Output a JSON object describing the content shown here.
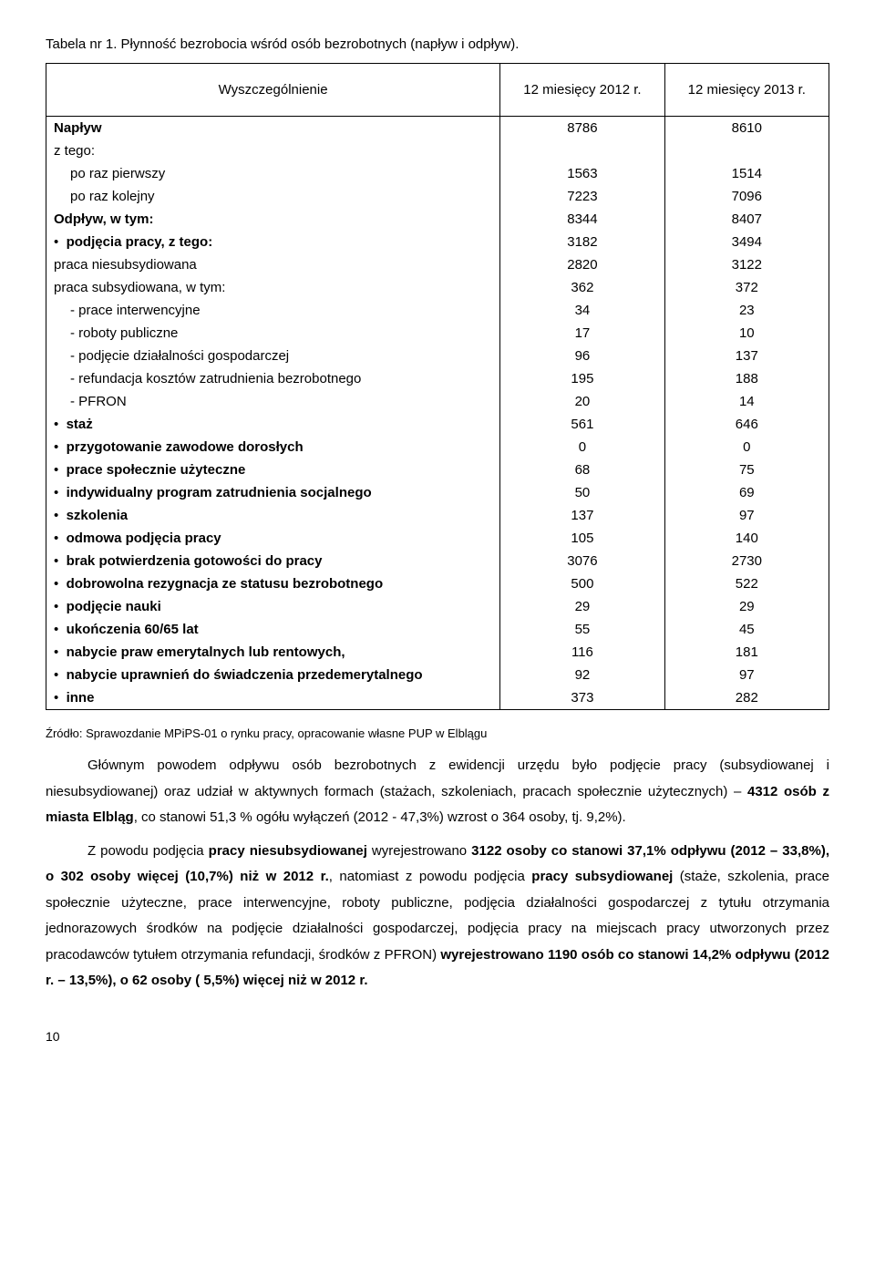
{
  "tableTitle": "Tabela nr 1. Płynność bezrobocia wśród osób bezrobotnych (napływ i odpływ).",
  "header": {
    "c1": "Wyszczególnienie",
    "c2": "12 miesięcy 2012 r.",
    "c3": "12 miesięcy 2013 r."
  },
  "rows": [
    {
      "label": "Napływ",
      "v1": "8786",
      "v2": "8610",
      "b": true
    },
    {
      "label": "z tego:",
      "v1": "",
      "v2": ""
    },
    {
      "label": "po raz pierwszy",
      "v1": "1563",
      "v2": "1514",
      "indent": 1
    },
    {
      "label": "po raz kolejny",
      "v1": "7223",
      "v2": "7096",
      "indent": 1
    },
    {
      "label": "Odpływ, w tym:",
      "v1": "8344",
      "v2": "8407",
      "b": true
    },
    {
      "label": "podjęcia pracy, z tego:",
      "v1": "3182",
      "v2": "3494",
      "bullet": true,
      "b": true
    },
    {
      "label": "praca niesubsydiowana",
      "v1": "2820",
      "v2": "3122"
    },
    {
      "label": "praca subsydiowana, w tym:",
      "v1": "362",
      "v2": "372"
    },
    {
      "label": "- prace interwencyjne",
      "v1": "34",
      "v2": "23",
      "indent": 1
    },
    {
      "label": "- roboty publiczne",
      "v1": "17",
      "v2": "10",
      "indent": 1
    },
    {
      "label": "- podjęcie działalności gospodarczej",
      "v1": "96",
      "v2": "137",
      "indent": 1
    },
    {
      "label": "- refundacja kosztów zatrudnienia bezrobotnego",
      "v1": "195",
      "v2": "188",
      "indent": 1
    },
    {
      "label": "- PFRON",
      "v1": "20",
      "v2": "14",
      "indent": 1
    },
    {
      "label": "staż",
      "v1": "561",
      "v2": "646",
      "bullet": true,
      "b": true
    },
    {
      "label": "przygotowanie zawodowe dorosłych",
      "v1": "0",
      "v2": "0",
      "bullet": true,
      "b": true
    },
    {
      "label": "prace społecznie użyteczne",
      "v1": "68",
      "v2": "75",
      "bullet": true,
      "b": true
    },
    {
      "label": "indywidualny program zatrudnienia socjalnego",
      "v1": "50",
      "v2": "69",
      "bullet": true,
      "b": true
    },
    {
      "label": "szkolenia",
      "v1": "137",
      "v2": "97",
      "bullet": true,
      "b": true
    },
    {
      "label": "odmowa podjęcia pracy",
      "v1": "105",
      "v2": "140",
      "bullet": true,
      "b": true
    },
    {
      "label": "brak potwierdzenia gotowości do pracy",
      "v1": "3076",
      "v2": "2730",
      "bullet": true,
      "b": true
    },
    {
      "label": "dobrowolna   rezygnacja   ze   statusu bezrobotnego",
      "v1": "500",
      "v2": "522",
      "bullet": true,
      "b": true
    },
    {
      "label": "podjęcie nauki",
      "v1": "29",
      "v2": "29",
      "bullet": true,
      "b": true
    },
    {
      "label": "ukończenia 60/65 lat",
      "v1": "55",
      "v2": "45",
      "bullet": true,
      "b": true
    },
    {
      "label": "nabycie praw emerytalnych lub rentowych,",
      "v1": "116",
      "v2": "181",
      "bullet": true,
      "b": true
    },
    {
      "label": "nabycie  uprawnień do świadczenia  przedemerytalnego",
      "v1": "92",
      "v2": "97",
      "bullet": true,
      "b": true
    },
    {
      "label": "inne",
      "v1": "373",
      "v2": "282",
      "bullet": true,
      "b": true
    }
  ],
  "source": "Źródło: Sprawozdanie MPiPS-01 o rynku pracy, opracowanie własne PUP w Elblągu",
  "para1a": "Głównym powodem odpływu osób bezrobotnych z ewidencji urzędu było podjęcie pracy (subsydiowanej i niesubsydiowanej) oraz udział w aktywnych formach (stażach, szkoleniach, pracach społecznie użytecznych) – ",
  "para1b": "4312 osób z miasta Elbląg",
  "para1c": ", co stanowi 51,3 % ogółu wyłączeń (2012 - 47,3%) wzrost o 364 osoby, tj. 9,2%).",
  "para2a": "Z powodu podjęcia ",
  "para2b": "pracy niesubsydiowanej",
  "para2c": " wyrejestrowano ",
  "para2d": "3122 osoby co stanowi 37,1% odpływu (2012 – 33,8%), o 302 osoby więcej (10,7%) niż w 2012 r.",
  "para2e": ", natomiast z powodu podjęcia ",
  "para2f": "pracy subsydiowanej",
  "para2g": " (staże, szkolenia, prace społecznie użyteczne, prace interwencyjne, roboty publiczne, podjęcia działalności gospodarczej z tytułu otrzymania jednorazowych środków na podjęcie działalności gospodarczej, podjęcia pracy na miejscach pracy utworzonych przez pracodawców tytułem otrzymania refundacji, środków  z PFRON) ",
  "para2h": "wyrejestrowano 1190 osób co stanowi 14,2% odpływu (2012 r. – 13,5%), o 62 osoby ( 5,5%) więcej niż w 2012 r.",
  "pageNum": "10"
}
